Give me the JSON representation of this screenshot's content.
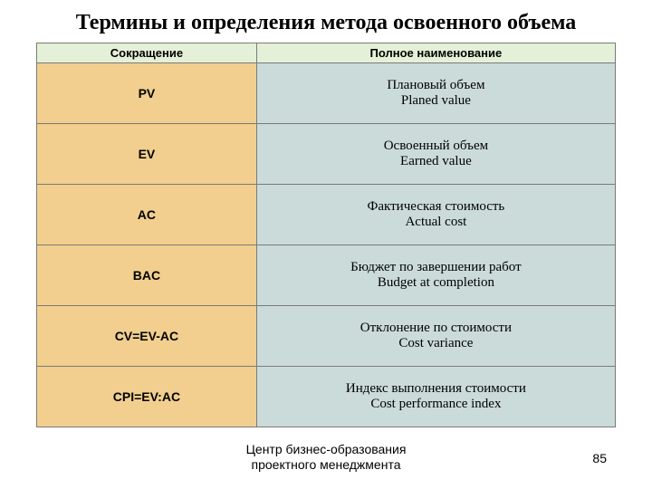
{
  "title": "Термины и определения метода освоенного объема",
  "colors": {
    "header_left": "#e5f0d8",
    "header_right": "#e5f0d8",
    "col_abbr": "#f2cf8e",
    "col_full": "#cadbda",
    "border": "#7a7a7a",
    "text": "#000000"
  },
  "table": {
    "headers": {
      "abbr": "Сокращение",
      "full": "Полное наименование"
    },
    "rows": [
      {
        "abbr": "PV",
        "ru": "Плановый объем",
        "en": "Planed value"
      },
      {
        "abbr": "EV",
        "ru": "Освоенный объем",
        "en": "Earned value"
      },
      {
        "abbr": "AC",
        "ru": "Фактическая стоимость",
        "en": "Actual cost"
      },
      {
        "abbr": "BAC",
        "ru": "Бюджет по завершении работ",
        "en": "Budget at completion"
      },
      {
        "abbr": "CV=EV-AC",
        "ru": "Отклонение по стоимости",
        "en": "Cost variance"
      },
      {
        "abbr": "CPI=EV:AC",
        "ru": "Индекс выполнения стоимости",
        "en": "Cost performance index"
      }
    ]
  },
  "footer": {
    "org_line1": "Центр бизнес-образования",
    "org_line2": "проектного менеджмента",
    "page": "85"
  }
}
